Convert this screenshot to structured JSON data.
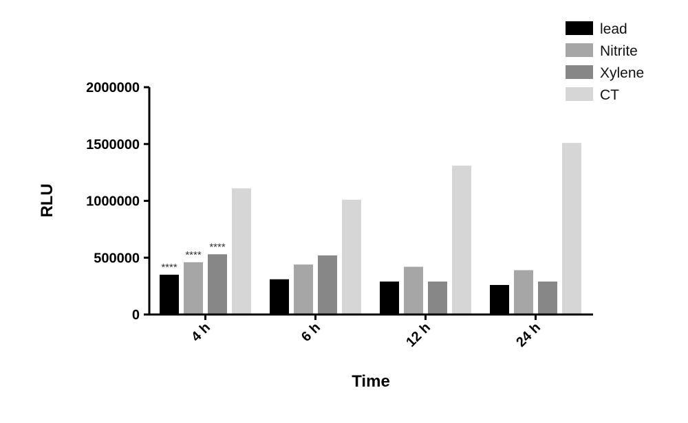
{
  "chart_data": {
    "type": "bar",
    "title": "",
    "xlabel": "Time",
    "ylabel": "RLU",
    "categories": [
      "4 h",
      "6 h",
      "12 h",
      "24 h"
    ],
    "ylim": [
      0,
      2000000
    ],
    "yticks": [
      0,
      500000,
      1000000,
      1500000,
      2000000
    ],
    "ytick_labels": [
      "0",
      "500000",
      "1000000",
      "1500000",
      "2000000"
    ],
    "grid": false,
    "legend_position": "top-right",
    "series": [
      {
        "name": "lead",
        "color": "#000000",
        "values": [
          350000,
          310000,
          290000,
          260000
        ]
      },
      {
        "name": "Nitrite",
        "color": "#a6a6a6",
        "values": [
          460000,
          440000,
          420000,
          390000
        ]
      },
      {
        "name": "Xylene",
        "color": "#878787",
        "values": [
          530000,
          520000,
          290000,
          290000
        ]
      },
      {
        "name": "CT",
        "color": "#d6d6d6",
        "values": [
          1110000,
          1010000,
          1310000,
          1510000
        ]
      }
    ],
    "annotations": [
      {
        "category": "4 h",
        "series": "lead",
        "text": "****"
      },
      {
        "category": "4 h",
        "series": "Nitrite",
        "text": "****"
      },
      {
        "category": "4 h",
        "series": "Xylene",
        "text": "****"
      }
    ]
  }
}
